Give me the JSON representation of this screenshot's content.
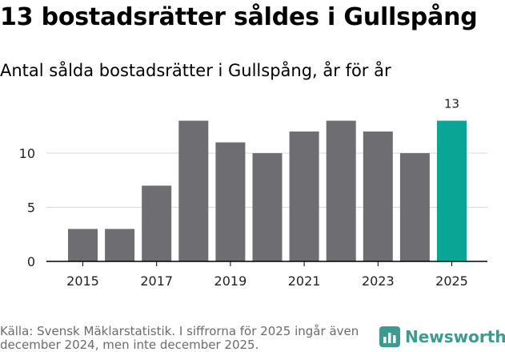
{
  "title": "13 bostadsrätter såldes i Gullspång",
  "subtitle": "Antal sålda bostadsrätter i Gullspång, år för år",
  "source": "Källa: Svensk Mäklarstatistik. I siffrorna för 2025 ingår även december 2024, men inte december 2025.",
  "brand": {
    "name": "Newsworthy",
    "icon": "bar-chart-logo-icon",
    "color": "#3d9a8e"
  },
  "colors": {
    "bar": "#6e6d72",
    "highlight": "#0aa595",
    "grid": "#d9d9d9",
    "axis": "#000000"
  },
  "chart_data": {
    "type": "bar",
    "title": "Antal sålda bostadsrätter i Gullspång, år för år",
    "categories": [
      "2015",
      "2016",
      "2017",
      "2018",
      "2019",
      "2020",
      "2021",
      "2022",
      "2023",
      "2024",
      "2025"
    ],
    "values": [
      3,
      3,
      7,
      13,
      11,
      10,
      12,
      13,
      12,
      10,
      13
    ],
    "highlight_index": 10,
    "data_labels": [
      {
        "index": 10,
        "text": "13"
      }
    ],
    "xticks": [
      "2015",
      "2017",
      "2019",
      "2021",
      "2023",
      "2025"
    ],
    "yticks": [
      0,
      5,
      10
    ],
    "ylim": [
      0,
      14.3
    ],
    "grid": true,
    "xlabel": "",
    "ylabel": ""
  }
}
